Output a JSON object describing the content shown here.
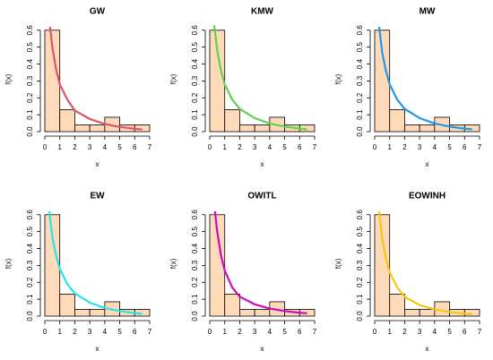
{
  "chart_data": [
    {
      "type": "histogram",
      "title": "GW",
      "xlabel": "x",
      "ylabel": "f(x)",
      "bins": [
        0,
        1,
        2,
        3,
        4,
        5,
        6,
        7
      ],
      "values": [
        0.6,
        0.13,
        0.04,
        0.04,
        0.085,
        0.04,
        0.04
      ],
      "color": "#FFDAB9",
      "series": [
        {
          "color": "#DF536B",
          "x": [
            0.35,
            0.5,
            0.75,
            1,
            1.5,
            2,
            3,
            4,
            5,
            6,
            6.5
          ],
          "values": [
            0.62,
            0.5,
            0.37,
            0.28,
            0.19,
            0.125,
            0.075,
            0.045,
            0.028,
            0.017,
            0.013
          ]
        }
      ],
      "xlim": [
        0,
        7
      ],
      "xticks": [
        0,
        1,
        2,
        3,
        4,
        5,
        6,
        7
      ],
      "ylim": [
        0,
        0.62
      ],
      "yticks": [
        {
          "value": 0,
          "label": "0.0"
        },
        0.1,
        0.2,
        0.3,
        0.4,
        0.5,
        0.6
      ]
    },
    {
      "type": "histogram",
      "title": "KMW",
      "xlabel": "x",
      "ylabel": "f(x)",
      "bins": [
        0,
        1,
        2,
        3,
        4,
        5,
        6,
        7
      ],
      "values": [
        0.6,
        0.13,
        0.04,
        0.04,
        0.085,
        0.04,
        0.04
      ],
      "color": "#FFDAB9",
      "series": [
        {
          "color": "#61D04F",
          "x": [
            0.3,
            0.5,
            0.75,
            1,
            1.5,
            2,
            3,
            4,
            5,
            6,
            6.5
          ],
          "values": [
            0.63,
            0.48,
            0.36,
            0.28,
            0.19,
            0.135,
            0.08,
            0.048,
            0.03,
            0.018,
            0.014
          ]
        }
      ],
      "xlim": [
        0,
        7
      ],
      "xticks": [
        0,
        1,
        2,
        3,
        4,
        5,
        6,
        7
      ],
      "ylim": [
        0,
        0.62
      ],
      "yticks": [
        {
          "value": 0,
          "label": "0.0"
        },
        0.1,
        0.2,
        0.3,
        0.4,
        0.5,
        0.6
      ]
    },
    {
      "type": "histogram",
      "title": "MW",
      "xlabel": "x",
      "ylabel": "f(x)",
      "bins": [
        0,
        1,
        2,
        3,
        4,
        5,
        6,
        7
      ],
      "values": [
        0.6,
        0.13,
        0.04,
        0.04,
        0.085,
        0.04,
        0.04
      ],
      "color": "#FFDAB9",
      "series": [
        {
          "color": "#2297E6",
          "x": [
            0.3,
            0.5,
            0.75,
            1,
            1.5,
            2,
            3,
            4,
            5,
            6,
            6.5
          ],
          "values": [
            0.62,
            0.47,
            0.36,
            0.28,
            0.19,
            0.135,
            0.08,
            0.048,
            0.03,
            0.018,
            0.014
          ]
        }
      ],
      "xlim": [
        0,
        7
      ],
      "xticks": [
        0,
        1,
        2,
        3,
        4,
        5,
        6,
        7
      ],
      "ylim": [
        0,
        0.62
      ],
      "yticks": [
        {
          "value": 0,
          "label": "0.0"
        },
        0.1,
        0.2,
        0.3,
        0.4,
        0.5,
        0.6
      ]
    },
    {
      "type": "histogram",
      "title": "EW",
      "xlabel": "x",
      "ylabel": "f(x)",
      "bins": [
        0,
        1,
        2,
        3,
        4,
        5,
        6,
        7
      ],
      "values": [
        0.6,
        0.13,
        0.04,
        0.04,
        0.085,
        0.04,
        0.04
      ],
      "color": "#FFDAB9",
      "series": [
        {
          "color": "#28E2E5",
          "x": [
            0.3,
            0.5,
            0.75,
            1,
            1.5,
            2,
            3,
            4,
            5,
            6,
            6.5
          ],
          "values": [
            0.62,
            0.47,
            0.36,
            0.28,
            0.19,
            0.135,
            0.08,
            0.048,
            0.03,
            0.018,
            0.014
          ]
        }
      ],
      "xlim": [
        0,
        7
      ],
      "xticks": [
        0,
        1,
        2,
        3,
        4,
        5,
        6,
        7
      ],
      "ylim": [
        0,
        0.62
      ],
      "yticks": [
        {
          "value": 0,
          "label": "0.0"
        },
        0.1,
        0.2,
        0.3,
        0.4,
        0.5,
        0.6
      ]
    },
    {
      "type": "histogram",
      "title": "OWITL",
      "xlabel": "x",
      "ylabel": "f(x)",
      "bins": [
        0,
        1,
        2,
        3,
        4,
        5,
        6,
        7
      ],
      "values": [
        0.6,
        0.13,
        0.04,
        0.04,
        0.085,
        0.04,
        0.04
      ],
      "color": "#FFDAB9",
      "series": [
        {
          "color": "#CD0BBC",
          "x": [
            0.35,
            0.5,
            0.75,
            1,
            1.5,
            2,
            3,
            4,
            5,
            6,
            6.5
          ],
          "values": [
            0.62,
            0.5,
            0.36,
            0.27,
            0.17,
            0.115,
            0.07,
            0.045,
            0.03,
            0.02,
            0.017
          ]
        }
      ],
      "xlim": [
        0,
        7
      ],
      "xticks": [
        0,
        1,
        2,
        3,
        4,
        5,
        6,
        7
      ],
      "ylim": [
        0,
        0.62
      ],
      "yticks": [
        {
          "value": 0,
          "label": "0.0"
        },
        0.1,
        0.2,
        0.3,
        0.4,
        0.5,
        0.6
      ]
    },
    {
      "type": "histogram",
      "title": "EOWINH",
      "xlabel": "x",
      "ylabel": "f(x)",
      "bins": [
        0,
        1,
        2,
        3,
        4,
        5,
        6,
        7
      ],
      "values": [
        0.6,
        0.13,
        0.04,
        0.04,
        0.085,
        0.04,
        0.04
      ],
      "color": "#FFDAB9",
      "series": [
        {
          "color": "#F5C710",
          "x": [
            0.3,
            0.5,
            0.75,
            1,
            1.5,
            2,
            3,
            4,
            5,
            6,
            6.5
          ],
          "values": [
            0.62,
            0.46,
            0.34,
            0.26,
            0.17,
            0.115,
            0.065,
            0.04,
            0.025,
            0.015,
            0.012
          ]
        }
      ],
      "xlim": [
        0,
        7
      ],
      "xticks": [
        0,
        1,
        2,
        3,
        4,
        5,
        6,
        7
      ],
      "ylim": [
        0,
        0.62
      ],
      "yticks": [
        {
          "value": 0,
          "label": "0.0"
        },
        0.1,
        0.2,
        0.3,
        0.4,
        0.5,
        0.6
      ]
    }
  ]
}
